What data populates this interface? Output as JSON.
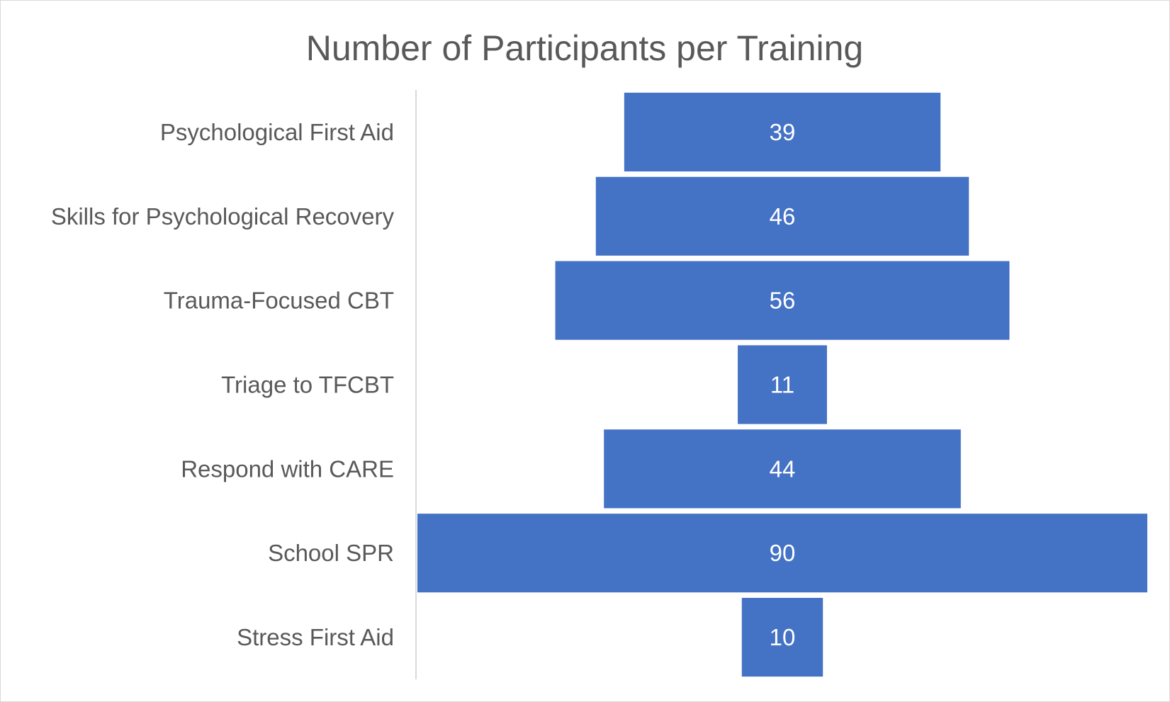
{
  "chart_data": {
    "type": "bar",
    "orientation": "horizontal",
    "layout": "funnel",
    "title": "Number of Participants per Training",
    "categories": [
      "Psychological First Aid",
      "Skills for Psychological Recovery",
      "Trauma-Focused CBT",
      "Triage to TFCBT",
      "Respond with CARE",
      "School SPR",
      "Stress First Aid"
    ],
    "values": [
      39,
      46,
      56,
      11,
      44,
      90,
      10
    ],
    "data_labels": [
      "39",
      "46",
      "56",
      "11",
      "44",
      "90",
      "10"
    ],
    "xlim": [
      0,
      90
    ],
    "grid": false,
    "legend": "none",
    "bar_color": "#4472C4"
  }
}
